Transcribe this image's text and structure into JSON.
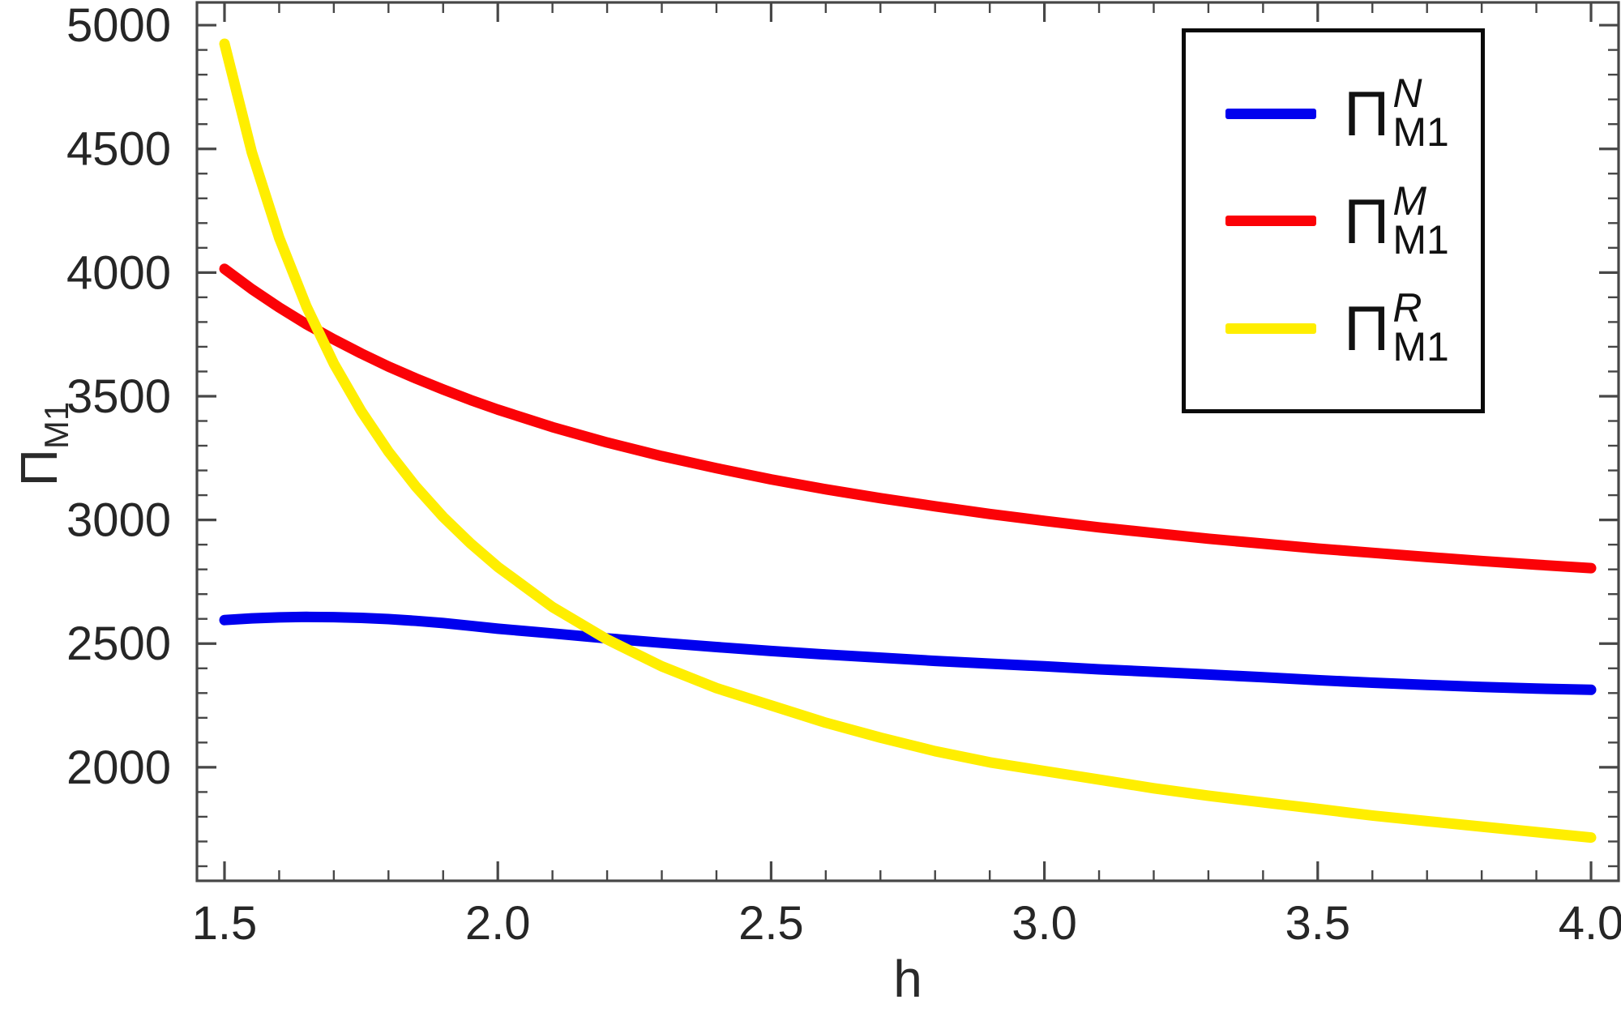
{
  "chart_data": {
    "type": "line",
    "title": "",
    "xlabel": "h",
    "ylabel": "Π_M1",
    "xlim": [
      1.4496,
      4.0504
    ],
    "ylim": [
      1541,
      5092
    ],
    "grid": false,
    "legend_position": "top-right",
    "frame_color": "#474747",
    "tick_label_color": "#262626",
    "x_major_ticks": [
      1.5,
      2.0,
      2.5,
      3.0,
      3.5,
      4.0
    ],
    "x_major_labels": [
      "1.5",
      "2.0",
      "2.5",
      "3.0",
      "3.5",
      "4.0"
    ],
    "x_minor_ticks": [
      1.6,
      1.7,
      1.8,
      1.9,
      2.1,
      2.2,
      2.3,
      2.4,
      2.6,
      2.7,
      2.8,
      2.9,
      3.1,
      3.2,
      3.3,
      3.4,
      3.6,
      3.7,
      3.8,
      3.9
    ],
    "y_major_ticks": [
      2000,
      2500,
      3000,
      3500,
      4000,
      4500,
      5000
    ],
    "y_major_labels": [
      "2000",
      "2500",
      "3000",
      "3500",
      "4000",
      "4500",
      "5000"
    ],
    "y_minor_ticks": [
      1600,
      1700,
      1800,
      1900,
      2100,
      2200,
      2300,
      2400,
      2600,
      2700,
      2800,
      2900,
      3100,
      3200,
      3300,
      3400,
      3600,
      3700,
      3800,
      3900,
      4100,
      4200,
      4300,
      4400,
      4600,
      4700,
      4800,
      4900
    ],
    "series": [
      {
        "name": "Π_M1^N",
        "color": "#0000EE",
        "line_width": 13,
        "points": [
          [
            1.5,
            2595
          ],
          [
            1.55,
            2602
          ],
          [
            1.6,
            2606
          ],
          [
            1.65,
            2608
          ],
          [
            1.7,
            2607
          ],
          [
            1.75,
            2604
          ],
          [
            1.8,
            2599
          ],
          [
            1.85,
            2592
          ],
          [
            1.9,
            2583
          ],
          [
            1.95,
            2572
          ],
          [
            2.0,
            2560
          ],
          [
            2.1,
            2541
          ],
          [
            2.2,
            2521
          ],
          [
            2.3,
            2503
          ],
          [
            2.4,
            2486
          ],
          [
            2.5,
            2470
          ],
          [
            2.6,
            2456
          ],
          [
            2.7,
            2443
          ],
          [
            2.8,
            2430
          ],
          [
            2.9,
            2419
          ],
          [
            3.0,
            2408
          ],
          [
            3.1,
            2396
          ],
          [
            3.2,
            2386
          ],
          [
            3.3,
            2375
          ],
          [
            3.4,
            2364
          ],
          [
            3.5,
            2352
          ],
          [
            3.6,
            2342
          ],
          [
            3.7,
            2333
          ],
          [
            3.8,
            2325
          ],
          [
            3.9,
            2318
          ],
          [
            4.0,
            2313
          ]
        ]
      },
      {
        "name": "Π_M1^M",
        "color": "#FB0207",
        "line_width": 13,
        "points": [
          [
            1.5,
            4015
          ],
          [
            1.55,
            3933
          ],
          [
            1.6,
            3859
          ],
          [
            1.65,
            3791
          ],
          [
            1.7,
            3730
          ],
          [
            1.75,
            3673
          ],
          [
            1.8,
            3620
          ],
          [
            1.85,
            3572
          ],
          [
            1.9,
            3527
          ],
          [
            1.95,
            3485
          ],
          [
            2.0,
            3446
          ],
          [
            2.1,
            3375
          ],
          [
            2.2,
            3313
          ],
          [
            2.3,
            3258
          ],
          [
            2.4,
            3209
          ],
          [
            2.5,
            3164
          ],
          [
            2.6,
            3124
          ],
          [
            2.7,
            3088
          ],
          [
            2.8,
            3055
          ],
          [
            2.9,
            3024
          ],
          [
            3.0,
            2996
          ],
          [
            3.1,
            2970
          ],
          [
            3.2,
            2947
          ],
          [
            3.3,
            2924
          ],
          [
            3.4,
            2904
          ],
          [
            3.5,
            2884
          ],
          [
            3.6,
            2867
          ],
          [
            3.7,
            2850
          ],
          [
            3.8,
            2834
          ],
          [
            3.9,
            2819
          ],
          [
            4.0,
            2805
          ]
        ]
      },
      {
        "name": "Π_M1^R",
        "color": "#FFEE00",
        "line_width": 13,
        "points": [
          [
            1.5,
            4925
          ],
          [
            1.55,
            4486
          ],
          [
            1.6,
            4141
          ],
          [
            1.65,
            3862
          ],
          [
            1.7,
            3632
          ],
          [
            1.75,
            3440
          ],
          [
            1.8,
            3276
          ],
          [
            1.85,
            3135
          ],
          [
            1.9,
            3012
          ],
          [
            1.95,
            2905
          ],
          [
            2.0,
            2810
          ],
          [
            2.1,
            2648
          ],
          [
            2.2,
            2517
          ],
          [
            2.3,
            2408
          ],
          [
            2.4,
            2320
          ],
          [
            2.5,
            2250
          ],
          [
            2.6,
            2180
          ],
          [
            2.7,
            2120
          ],
          [
            2.8,
            2065
          ],
          [
            2.9,
            2020
          ],
          [
            3.0,
            1985
          ],
          [
            3.1,
            1950
          ],
          [
            3.2,
            1915
          ],
          [
            3.3,
            1885
          ],
          [
            3.4,
            1858
          ],
          [
            3.5,
            1832
          ],
          [
            3.6,
            1805
          ],
          [
            3.7,
            1782
          ],
          [
            3.8,
            1760
          ],
          [
            3.9,
            1738
          ],
          [
            4.0,
            1716
          ]
        ]
      }
    ]
  },
  "axes": {
    "x_title": "h",
    "y_title_symbol": "Π",
    "y_title_sub": "M1"
  },
  "legend": {
    "items": [
      {
        "symbol": "Π",
        "sup": "N",
        "sub": "M1",
        "color": "#0000EE"
      },
      {
        "symbol": "Π",
        "sup": "M",
        "sub": "M1",
        "color": "#FB0207"
      },
      {
        "symbol": "Π",
        "sup": "R",
        "sub": "M1",
        "color": "#FFEE00"
      }
    ]
  }
}
